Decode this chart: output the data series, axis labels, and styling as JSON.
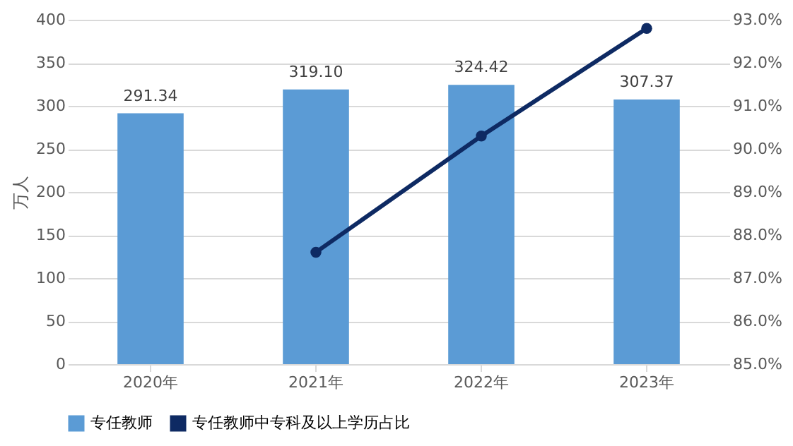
{
  "chart_data": {
    "type": "bar",
    "categories": [
      "2020年",
      "2021年",
      "2022年",
      "2023年"
    ],
    "ylabel": "万人",
    "series": [
      {
        "name": "专任教师",
        "color": "#5b9bd5",
        "values": [
          291.34,
          319.1,
          324.42,
          307.37
        ],
        "value_labels": [
          "291.34",
          "319.10",
          "324.42",
          "307.37"
        ]
      },
      {
        "name": "专任教师中专科及以上学历占比",
        "type": "line",
        "axis": "y2",
        "color": "#0e2a63",
        "values": [
          null,
          87.6,
          90.3,
          92.8
        ],
        "marker": "circle"
      }
    ],
    "ylim": [
      0,
      400
    ],
    "yticks": [
      0,
      50,
      100,
      150,
      200,
      250,
      300,
      350,
      400
    ],
    "y2lim": [
      85,
      93
    ],
    "y2ticks": [
      {
        "value": 85,
        "label": "85.0%"
      },
      {
        "value": 86,
        "label": "86.0%"
      },
      {
        "value": 87,
        "label": "87.0%"
      },
      {
        "value": 88,
        "label": "88.0%"
      },
      {
        "value": 89,
        "label": "89.0%"
      },
      {
        "value": 90,
        "label": "90.0%"
      },
      {
        "value": 91,
        "label": "91.0%"
      },
      {
        "value": 92,
        "label": "92.0%"
      },
      {
        "value": 93,
        "label": "93.0%"
      }
    ],
    "grid": "y",
    "legend": "bottom"
  }
}
